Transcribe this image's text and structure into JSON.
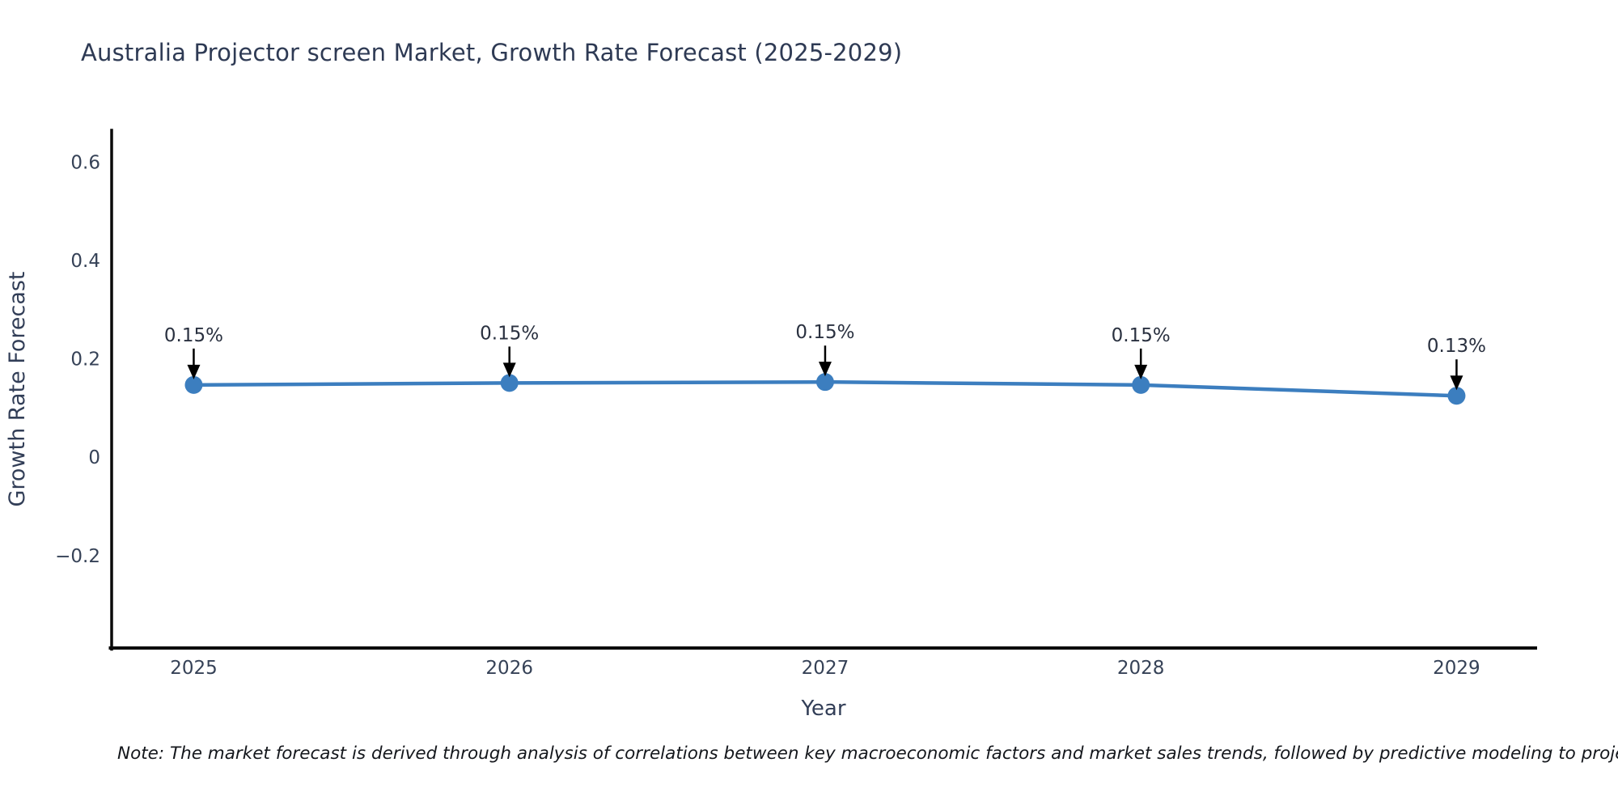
{
  "chart_data": {
    "type": "line",
    "title": "Australia Projector screen Market, Growth Rate Forecast (2025-2029)",
    "xlabel": "Year",
    "ylabel": "Growth Rate Forecast",
    "x": [
      2025,
      2026,
      2027,
      2028,
      2029
    ],
    "values": [
      0.15,
      0.15,
      0.15,
      0.15,
      0.13
    ],
    "values_plotted": [
      0.147,
      0.151,
      0.153,
      0.147,
      0.125
    ],
    "point_labels": [
      "0.15%",
      "0.15%",
      "0.15%",
      "0.15%",
      "0.13%"
    ],
    "xticks": [
      2025,
      2026,
      2027,
      2028,
      2029
    ],
    "xtick_labels": [
      "2025",
      "2026",
      "2027",
      "2028",
      "2029"
    ],
    "yticks": [
      0.6,
      0.4,
      0.2,
      0,
      -0.2
    ],
    "ytick_labels": [
      "0.6",
      "0.4",
      "0.2",
      "0",
      "−0.2"
    ],
    "xlim": [
      2024.74,
      2029.25
    ],
    "ylim": [
      -0.386,
      0.663
    ],
    "grid": false,
    "legend": null,
    "line_color": "#3c7ebf",
    "marker_color": "#3c7ebf",
    "spine_color": "#0a0a0a",
    "arrow_color": "#000000"
  },
  "footnote": {
    "text": "Note: The market forecast is derived through analysis of correlations between key macroeconomic factors and market sales trends, followed by predictive modeling to project future sa"
  }
}
